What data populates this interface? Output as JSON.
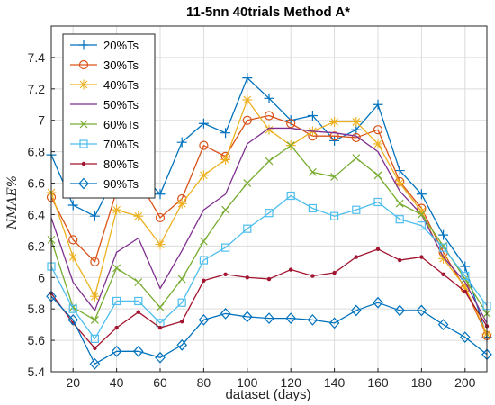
{
  "chart_data": {
    "type": "line",
    "title": "11-5nn 40trials Method A*",
    "xlabel": "dataset (days)",
    "ylabel": "NMAE%",
    "xlim": [
      10,
      210
    ],
    "ylim": [
      5.4,
      7.6
    ],
    "xticks": [
      20,
      40,
      60,
      80,
      100,
      120,
      140,
      160,
      180,
      200
    ],
    "yticks": [
      5.4,
      5.6,
      5.8,
      6,
      6.2,
      6.4,
      6.6,
      6.8,
      7,
      7.2,
      7.4
    ],
    "grid": true,
    "legend_position": "top-left",
    "x": [
      10,
      20,
      30,
      40,
      50,
      60,
      70,
      80,
      90,
      100,
      110,
      120,
      130,
      140,
      150,
      160,
      170,
      180,
      190,
      200,
      210
    ],
    "series": [
      {
        "name": "20%Ts",
        "color": "#0072BD",
        "marker": "plus",
        "values": [
          6.78,
          6.46,
          6.39,
          6.66,
          6.68,
          6.53,
          6.86,
          6.98,
          6.92,
          7.27,
          7.14,
          7.0,
          7.03,
          6.87,
          6.94,
          7.1,
          6.68,
          6.53,
          6.27,
          6.07,
          5.62
        ]
      },
      {
        "name": "30%Ts",
        "color": "#D95319",
        "marker": "circle",
        "values": [
          6.51,
          6.24,
          6.1,
          6.55,
          6.62,
          6.38,
          6.5,
          6.84,
          6.77,
          7.0,
          7.03,
          6.98,
          6.9,
          6.9,
          6.89,
          6.94,
          6.61,
          6.44,
          6.16,
          5.93,
          5.63
        ]
      },
      {
        "name": "40%Ts",
        "color": "#EDB120",
        "marker": "asterisk",
        "values": [
          6.54,
          6.13,
          5.88,
          6.43,
          6.39,
          6.21,
          6.47,
          6.65,
          6.75,
          7.13,
          6.94,
          6.84,
          6.93,
          6.99,
          6.99,
          6.85,
          6.6,
          6.42,
          6.12,
          5.94,
          5.64
        ]
      },
      {
        "name": "50%Ts",
        "color": "#7E2F8E",
        "marker": "none",
        "values": [
          6.38,
          5.97,
          5.79,
          6.16,
          6.25,
          5.93,
          6.17,
          6.43,
          6.53,
          6.85,
          6.95,
          6.95,
          6.93,
          6.92,
          6.9,
          6.8,
          6.55,
          6.4,
          6.13,
          5.97,
          5.71
        ]
      },
      {
        "name": "60%Ts",
        "color": "#77AC30",
        "marker": "x",
        "values": [
          6.24,
          5.81,
          5.73,
          6.06,
          5.97,
          5.81,
          5.99,
          6.23,
          6.43,
          6.6,
          6.74,
          6.84,
          6.67,
          6.64,
          6.76,
          6.65,
          6.47,
          6.4,
          6.2,
          5.99,
          5.77
        ]
      },
      {
        "name": "70%Ts",
        "color": "#4DBEEE",
        "marker": "square",
        "values": [
          6.07,
          5.8,
          5.61,
          5.85,
          5.85,
          5.71,
          5.84,
          6.11,
          6.19,
          6.31,
          6.41,
          6.52,
          6.44,
          6.39,
          6.43,
          6.48,
          6.37,
          6.33,
          6.19,
          6.01,
          5.82
        ]
      },
      {
        "name": "80%Ts",
        "color": "#A2142F",
        "marker": "dot",
        "values": [
          5.9,
          5.71,
          5.55,
          5.68,
          5.78,
          5.68,
          5.72,
          5.98,
          6.02,
          6.0,
          5.99,
          6.05,
          6.01,
          6.03,
          6.13,
          6.18,
          6.11,
          6.13,
          6.02,
          5.91,
          5.69
        ]
      },
      {
        "name": "90%Ts",
        "color": "#0072BD",
        "marker": "diamond",
        "values": [
          5.88,
          5.73,
          5.45,
          5.53,
          5.53,
          5.49,
          5.57,
          5.73,
          5.77,
          5.75,
          5.74,
          5.74,
          5.73,
          5.71,
          5.79,
          5.84,
          5.79,
          5.79,
          5.7,
          5.62,
          5.51
        ]
      }
    ]
  }
}
